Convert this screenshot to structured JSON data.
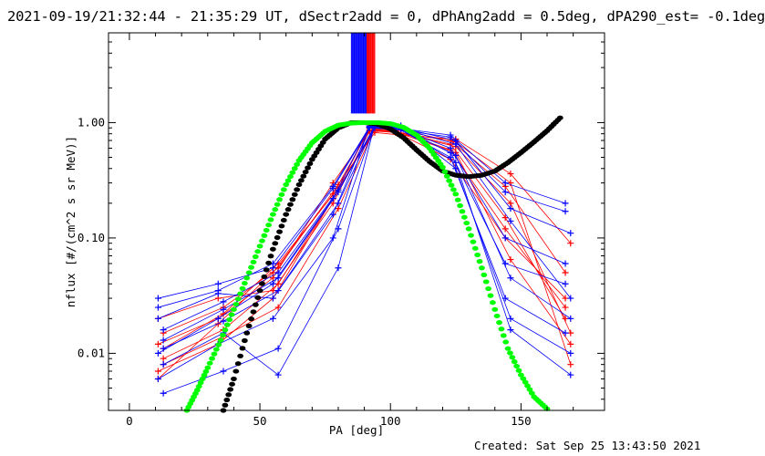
{
  "title": "2021-09-19/21:32:44 - 21:35:29 UT, dSectr2add = 0, dPhAng2add = 0.5deg, dPA290_est= -0.1deg",
  "footer": "Created: Sat Sep 25 13:43:50 2021",
  "chart_data": {
    "type": "line",
    "xlabel": "PA [deg]",
    "ylabel": "nflux [#/(cm^2 s sr MeV)]",
    "xlim": [
      -8,
      182
    ],
    "ylim": [
      0.0032,
      6
    ],
    "yscale": "log",
    "x_ticks": [
      0,
      50,
      100,
      150
    ],
    "x_tick_labels": [
      "0",
      "50",
      "100",
      "150"
    ],
    "y_ticks": [
      0.01,
      0.1,
      1.0
    ],
    "y_tick_labels": [
      "0.01",
      "0.10",
      "1.00"
    ],
    "grid": false,
    "colors": {
      "red": "#ff0000",
      "blue": "#0000ff",
      "black": "#000000",
      "green": "#00ff00"
    },
    "pa_points": [
      11,
      13,
      34,
      36,
      55,
      57,
      78,
      80,
      92,
      94,
      102,
      104,
      123,
      125,
      144,
      146,
      167,
      169
    ],
    "series_groups": [
      {
        "color": "red",
        "lines": [
          [
            0.012,
            0.02,
            0.045,
            0.3,
            0.85,
            0.82,
            0.7,
            0.28,
            0.05
          ],
          [
            0.009,
            0.016,
            0.04,
            0.26,
            0.88,
            0.8,
            0.55,
            0.065,
            0.012
          ],
          [
            0.007,
            0.012,
            0.03,
            0.22,
            0.9,
            0.84,
            0.65,
            0.15,
            0.02
          ],
          [
            0.015,
            0.025,
            0.055,
            0.29,
            0.82,
            0.78,
            0.72,
            0.36,
            0.09
          ],
          [
            0.006,
            0.018,
            0.05,
            0.24,
            0.87,
            0.83,
            0.48,
            0.1,
            0.03
          ],
          [
            0.011,
            0.022,
            0.06,
            0.27,
            0.86,
            0.81,
            0.62,
            0.2,
            0.015
          ],
          [
            0.02,
            0.03,
            0.035,
            0.2,
            0.84,
            0.85,
            0.58,
            0.12,
            0.025
          ],
          [
            0.008,
            0.014,
            0.025,
            0.18,
            0.89,
            0.86,
            0.68,
            0.3,
            0.008
          ]
        ]
      },
      {
        "color": "blue",
        "lines": [
          [
            0.025,
            0.035,
            0.06,
            0.28,
            0.92,
            0.9,
            0.78,
            0.3,
            0.2
          ],
          [
            0.0045,
            0.007,
            0.011,
            0.12,
            0.95,
            0.88,
            0.45,
            0.016,
            0.0065
          ],
          [
            0.01,
            0.02,
            0.04,
            0.22,
            0.93,
            0.92,
            0.6,
            0.1,
            0.06
          ],
          [
            0.016,
            0.028,
            0.05,
            0.26,
            0.9,
            0.9,
            0.7,
            0.18,
            0.11
          ],
          [
            0.006,
            0.012,
            0.02,
            0.1,
            0.96,
            0.91,
            0.5,
            0.03,
            0.015
          ],
          [
            0.013,
            0.024,
            0.045,
            0.25,
            0.94,
            0.89,
            0.65,
            0.14,
            0.03
          ],
          [
            0.02,
            0.033,
            0.03,
            0.16,
            0.91,
            0.93,
            0.55,
            0.06,
            0.04
          ],
          [
            0.008,
            0.015,
            0.0065,
            0.055,
            0.97,
            0.94,
            0.4,
            0.02,
            0.01
          ],
          [
            0.03,
            0.04,
            0.055,
            0.27,
            0.9,
            0.87,
            0.75,
            0.25,
            0.17
          ],
          [
            0.011,
            0.019,
            0.035,
            0.2,
            0.95,
            0.9,
            0.52,
            0.045,
            0.02
          ]
        ]
      }
    ],
    "vertical_bars": {
      "x_ranges": [
        [
          85,
          92
        ],
        [
          91,
          94
        ]
      ],
      "colors": [
        "blue",
        "red"
      ],
      "from_y": 1.2
    },
    "fit_curves": [
      {
        "color": "black",
        "x": [
          36,
          40,
          45,
          50,
          55,
          60,
          65,
          70,
          75,
          80,
          85,
          90,
          95,
          100,
          105,
          110,
          115,
          120,
          125,
          130,
          135,
          140,
          145,
          150,
          155,
          160,
          165
        ],
        "y": [
          0.0032,
          0.006,
          0.015,
          0.035,
          0.08,
          0.16,
          0.29,
          0.48,
          0.72,
          0.9,
          1.0,
          1.0,
          0.97,
          0.88,
          0.74,
          0.58,
          0.46,
          0.38,
          0.35,
          0.34,
          0.35,
          0.38,
          0.45,
          0.55,
          0.68,
          0.85,
          1.1
        ]
      },
      {
        "color": "green",
        "x": [
          22,
          26,
          30,
          35,
          40,
          45,
          50,
          55,
          60,
          65,
          70,
          75,
          80,
          85,
          90,
          95,
          100,
          105,
          110,
          115,
          120,
          125,
          130,
          135,
          140,
          145,
          150,
          155,
          160
        ],
        "y": [
          0.0032,
          0.0048,
          0.0075,
          0.013,
          0.024,
          0.045,
          0.085,
          0.16,
          0.29,
          0.47,
          0.67,
          0.84,
          0.95,
          0.99,
          1.0,
          1.0,
          0.98,
          0.91,
          0.78,
          0.6,
          0.41,
          0.24,
          0.12,
          0.055,
          0.024,
          0.011,
          0.0065,
          0.0042,
          0.0033
        ]
      }
    ]
  }
}
